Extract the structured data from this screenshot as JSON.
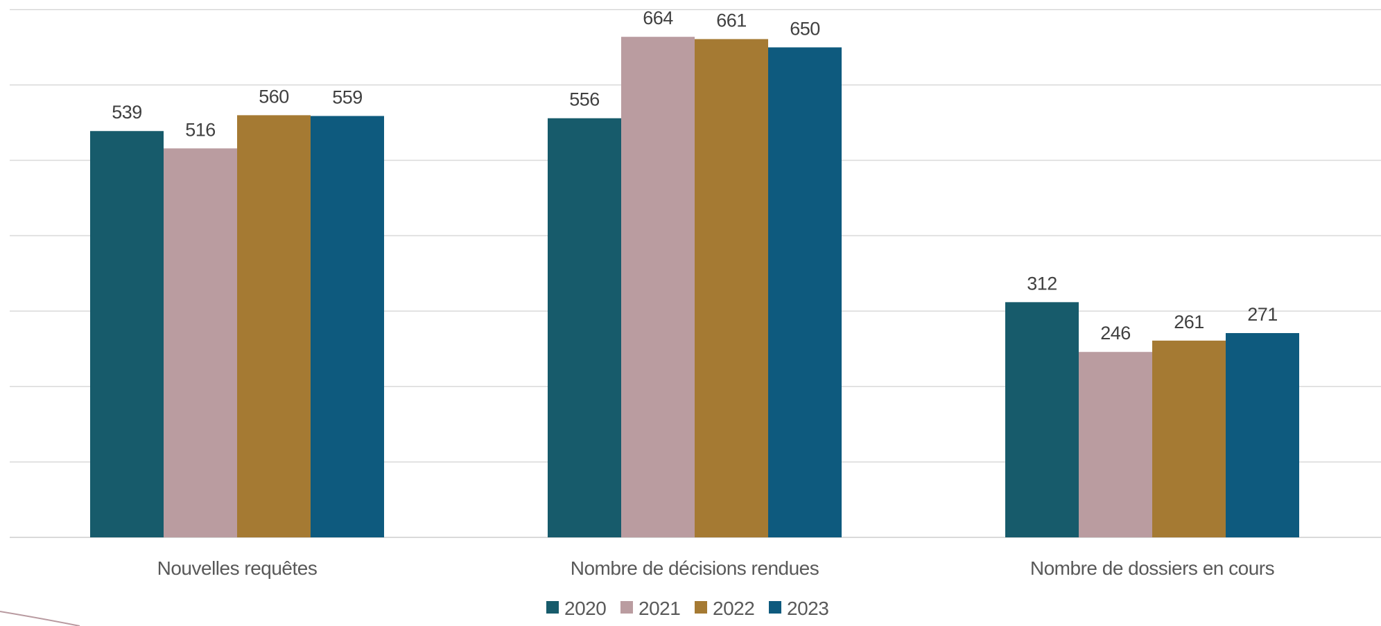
{
  "chart_data": {
    "type": "bar",
    "title": "",
    "xlabel": "",
    "ylabel": "",
    "categories": [
      "Nouvelles requêtes",
      "Nombre de décisions rendues",
      "Nombre de dossiers en cours"
    ],
    "series": [
      {
        "name": "2020",
        "color": "#175b6b",
        "values": [
          539,
          556,
          312
        ]
      },
      {
        "name": "2021",
        "color": "#ba9ca0",
        "values": [
          516,
          664,
          246
        ]
      },
      {
        "name": "2022",
        "color": "#a57a33",
        "values": [
          560,
          661,
          261
        ]
      },
      {
        "name": "2023",
        "color": "#0e5a7e",
        "values": [
          559,
          650,
          271
        ]
      }
    ],
    "ylim": [
      0,
      700
    ],
    "ytick_step": 100,
    "grid": true,
    "y_tick_labels_visible": false,
    "legend_position": "bottom-center",
    "data_labels": true
  }
}
